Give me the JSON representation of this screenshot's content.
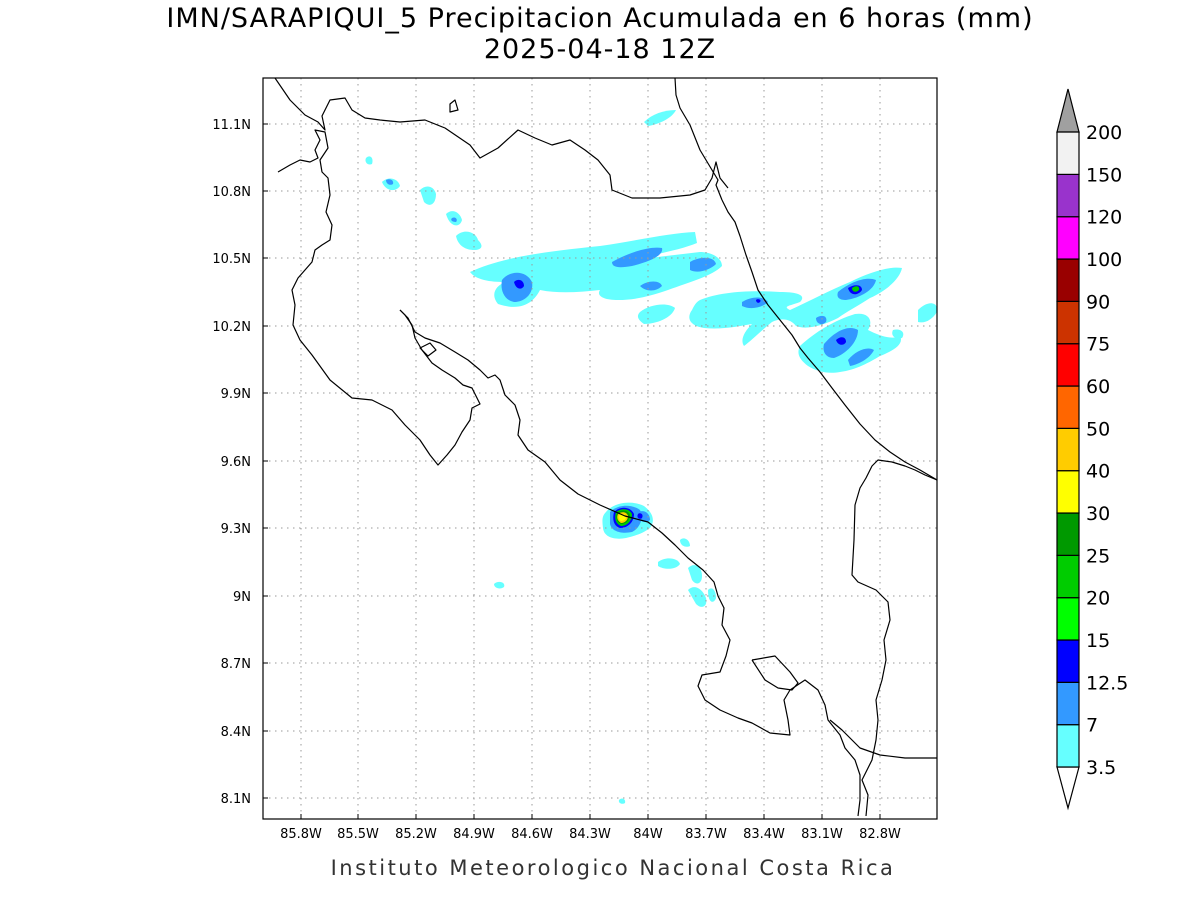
{
  "title": "IMN/SARAPIQUI_5 Precipitacion Acumulada en 6 horas (mm)",
  "subtitle": "2025-04-18 12Z",
  "footer": "Instituto Meteorologico Nacional Costa Rica",
  "map": {
    "lon_range": [
      -86.05,
      -82.55
    ],
    "lat_range": [
      8.0,
      11.3
    ],
    "lon_ticks": [
      "85.8W",
      "85.5W",
      "85.2W",
      "84.9W",
      "84.6W",
      "84.3W",
      "84W",
      "83.7W",
      "83.4W",
      "83.1W",
      "82.8W"
    ],
    "lat_ticks": [
      "11.1N",
      "10.8N",
      "10.5N",
      "10.2N",
      "9.9N",
      "9.6N",
      "9.3N",
      "9N",
      "8.7N",
      "8.4N",
      "8.1N"
    ],
    "grid": "dotted"
  },
  "colorbar": {
    "levels": [
      "3.5",
      "7",
      "12.5",
      "15",
      "20",
      "25",
      "30",
      "40",
      "50",
      "60",
      "75",
      "90",
      "100",
      "120",
      "150",
      "200"
    ],
    "colors": [
      "#66ffff",
      "#3399ff",
      "#0000ff",
      "#00ff00",
      "#00cc00",
      "#009900",
      "#ffff00",
      "#ffcc00",
      "#ff6600",
      "#ff0000",
      "#cc3300",
      "#990000",
      "#ff00ff",
      "#9933cc",
      "#f2f2f2",
      "#a0a0a0"
    ]
  }
}
